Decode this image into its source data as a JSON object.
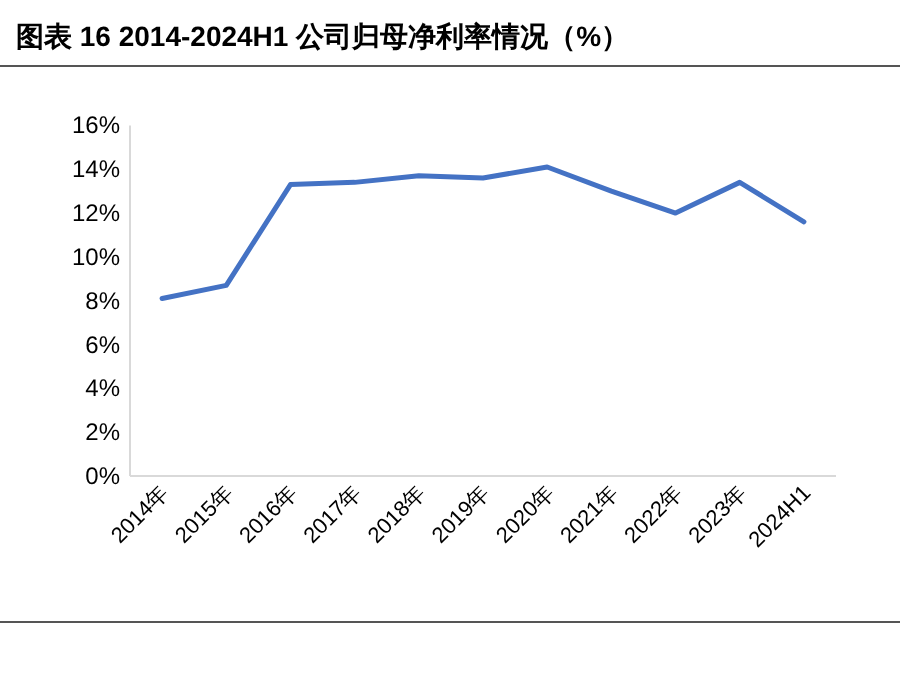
{
  "chart_data": {
    "type": "line",
    "title": "图表 16 2014-2024H1 公司归母净利率情况（%）",
    "categories": [
      "2014年",
      "2015年",
      "2016年",
      "2017年",
      "2018年",
      "2019年",
      "2020年",
      "2021年",
      "2022年",
      "2023年",
      "2024H1"
    ],
    "series": [
      {
        "color": "#4472c4",
        "values": [
          8.1,
          8.7,
          13.3,
          13.4,
          13.7,
          13.6,
          14.1,
          13.0,
          12.0,
          13.4,
          11.6
        ]
      }
    ],
    "ylim": [
      0,
      16
    ],
    "yticks": [
      {
        "value": 0,
        "label": "0%"
      },
      {
        "value": 2,
        "label": "2%"
      },
      {
        "value": 4,
        "label": "4%"
      },
      {
        "value": 6,
        "label": "6%"
      },
      {
        "value": 8,
        "label": "8%"
      },
      {
        "value": 10,
        "label": "10%"
      },
      {
        "value": 12,
        "label": "12%"
      },
      {
        "value": 14,
        "label": "14%"
      },
      {
        "value": 16,
        "label": "16%"
      }
    ],
    "grid": false,
    "marker": "none",
    "line_style": "solid"
  }
}
